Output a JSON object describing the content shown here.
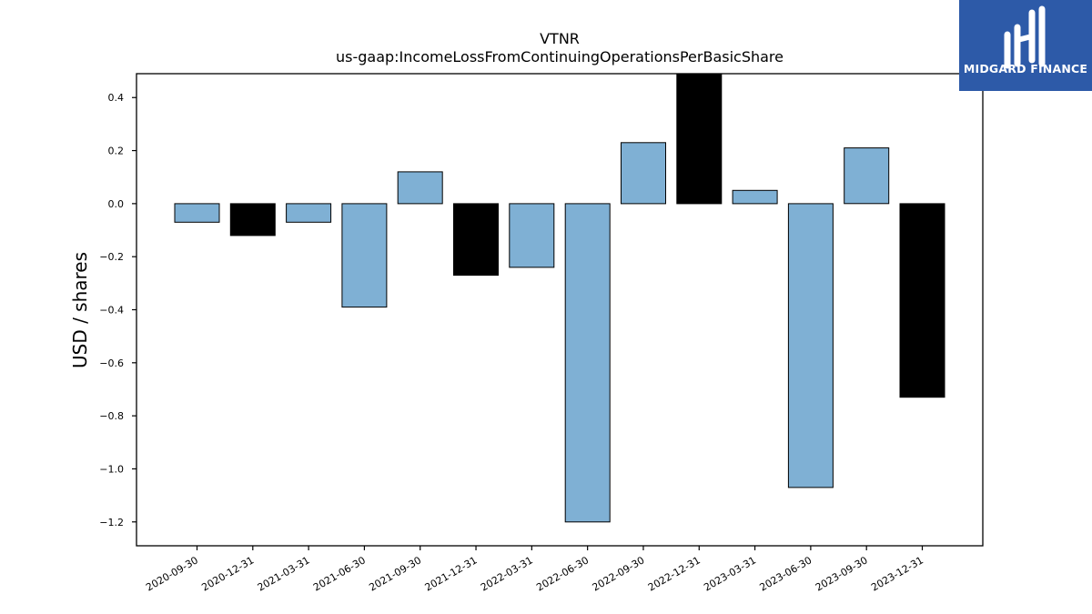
{
  "brand": {
    "name": "MIDGARD FINANCE",
    "bg_color": "#2d5aa8"
  },
  "chart_data": {
    "type": "bar",
    "title": "VTNR",
    "subtitle": "us-gaap:IncomeLossFromContinuingOperationsPerBasicShare",
    "xlabel": "",
    "ylabel": "USD / shares",
    "categories": [
      "2020-09-30",
      "2020-12-31",
      "2021-03-31",
      "2021-06-30",
      "2021-09-30",
      "2021-12-31",
      "2022-03-31",
      "2022-06-30",
      "2022-09-30",
      "2022-12-31",
      "2023-03-31",
      "2023-06-30",
      "2023-09-30",
      "2023-12-31"
    ],
    "values": [
      -0.07,
      -0.12,
      -0.07,
      -0.39,
      0.12,
      -0.27,
      -0.24,
      -1.2,
      0.23,
      0.49,
      0.05,
      -1.07,
      0.21,
      -0.73
    ],
    "bar_colors": [
      "#7fb0d4",
      "#000000",
      "#7fb0d4",
      "#7fb0d4",
      "#7fb0d4",
      "#000000",
      "#7fb0d4",
      "#7fb0d4",
      "#7fb0d4",
      "#000000",
      "#7fb0d4",
      "#7fb0d4",
      "#7fb0d4",
      "#000000"
    ],
    "ylim": [
      -1.29,
      0.49
    ],
    "yticks": [
      0.4,
      0.2,
      0.0,
      -0.2,
      -0.4,
      -0.6,
      -0.8,
      -1.0,
      -1.2
    ],
    "ytick_labels": [
      "0.4",
      "0.2",
      "0.0",
      "−0.2",
      "−0.4",
      "−0.6",
      "−0.8",
      "−1.0",
      "−1.2"
    ],
    "grid": false,
    "legend": "none"
  }
}
